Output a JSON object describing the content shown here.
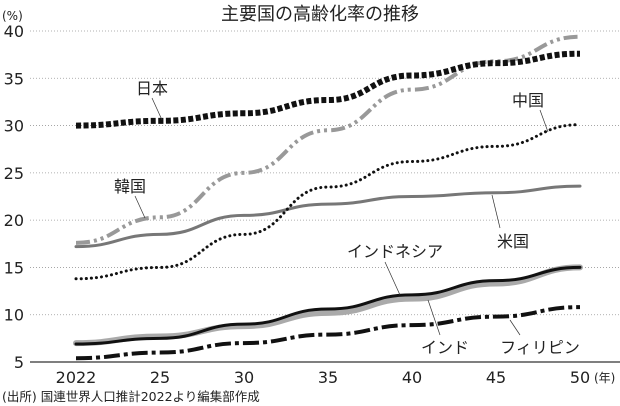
{
  "chart_data": {
    "type": "line",
    "title": "主要国の高齢化率の推移",
    "ylabel": "(%)",
    "xlabel": "(年)",
    "source": "(出所) 国連世界人口推計2022より編集部作成",
    "categories": [
      "2022",
      "25",
      "30",
      "35",
      "40",
      "45",
      "50"
    ],
    "ylim": [
      5,
      40
    ],
    "yticks": [
      5,
      10,
      15,
      20,
      25,
      30,
      35,
      40
    ],
    "grid": "horizontal dotted",
    "series": [
      {
        "name": "日本",
        "color": "#111111",
        "style": "square-dotted",
        "values": [
          30.0,
          30.5,
          31.3,
          32.7,
          35.3,
          36.6,
          37.6
        ]
      },
      {
        "name": "韓国",
        "color": "#999999",
        "style": "dash-dot-dot",
        "values": [
          17.6,
          20.3,
          25.0,
          29.5,
          33.8,
          36.8,
          39.4
        ]
      },
      {
        "name": "中国",
        "color": "#111111",
        "style": "dotted",
        "values": [
          13.8,
          15.0,
          18.5,
          23.5,
          26.2,
          27.8,
          30.1
        ]
      },
      {
        "name": "米国",
        "color": "#777777",
        "style": "solid",
        "values": [
          17.2,
          18.5,
          20.5,
          21.7,
          22.5,
          22.9,
          23.6
        ]
      },
      {
        "name": "インド",
        "color": "#aaaaaa",
        "style": "thick-solid",
        "values": [
          7.0,
          7.7,
          8.8,
          10.2,
          11.7,
          13.3,
          15.0
        ]
      },
      {
        "name": "インドネシア",
        "color": "#111111",
        "style": "solid",
        "values": [
          6.9,
          7.5,
          9.0,
          10.6,
          12.1,
          13.6,
          15.0
        ]
      },
      {
        "name": "フィリピン",
        "color": "#111111",
        "style": "dash-dot",
        "values": [
          5.4,
          6.0,
          7.0,
          7.9,
          8.9,
          9.8,
          10.8
        ]
      }
    ]
  }
}
